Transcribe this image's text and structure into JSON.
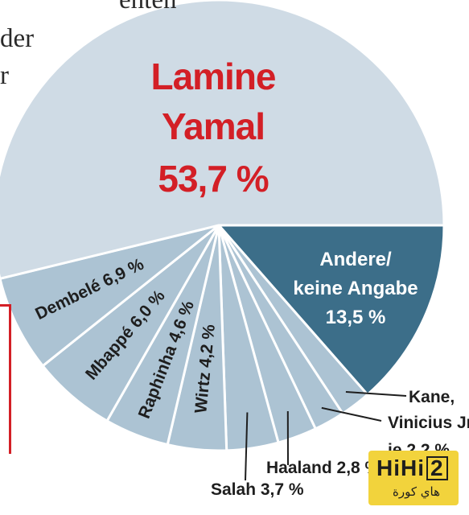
{
  "page_fragments": [
    "enten",
    "der",
    "r"
  ],
  "logo": {
    "text_main": "HiHi",
    "text_box": "2",
    "text_sub": "هاي كورة"
  },
  "chart_data": {
    "type": "pie",
    "title": "",
    "highlight_color": "#d31f26",
    "slices": [
      {
        "label": "Lamine Yamal",
        "display": [
          "Lamine",
          "Yamal",
          "53,7 %"
        ],
        "value": 53.7,
        "color": "#cfdbe5",
        "label_color": "#d31f26",
        "label_style": "inside-big"
      },
      {
        "label": "Andere/ keine Angabe",
        "display": [
          "Andere/",
          "keine Angabe",
          "13,5 %"
        ],
        "value": 13.5,
        "color": "#3c6e89",
        "label_color": "#ffffff",
        "label_style": "inside-center"
      },
      {
        "label": "Kane, Vinicius Jr. je 2,2 %",
        "display": [
          "Kane,"
        ],
        "value": 2.2,
        "color": "#acc3d3",
        "label_color": "#1e1e1e",
        "label_style": "leader"
      },
      {
        "label": "Kane, Vinicius Jr. je 2,2 %",
        "display": [
          "Vinicius Jr.",
          "je 2,2 %"
        ],
        "value": 2.2,
        "color": "#acc3d3",
        "label_color": "#1e1e1e",
        "label_style": "leader"
      },
      {
        "label": "Haaland 2,8 %",
        "display": [
          "Haaland 2,8 %"
        ],
        "value": 2.8,
        "color": "#acc3d3",
        "label_color": "#1e1e1e",
        "label_style": "leader"
      },
      {
        "label": "Salah 3,7 %",
        "display": [
          "Salah 3,7 %"
        ],
        "value": 3.7,
        "color": "#acc3d3",
        "label_color": "#1e1e1e",
        "label_style": "leader"
      },
      {
        "label": "Wirtz 4,2 %",
        "display": [
          "Wirtz 4,2 %"
        ],
        "value": 4.2,
        "color": "#acc3d3",
        "label_color": "#1e1e1e",
        "label_style": "radial"
      },
      {
        "label": "Raphinha 4,6 %",
        "display": [
          "Raphinha 4,6 %"
        ],
        "value": 4.6,
        "color": "#acc3d3",
        "label_color": "#1e1e1e",
        "label_style": "radial"
      },
      {
        "label": "Mbappé 6,0 %",
        "display": [
          "Mbappé 6,0 %"
        ],
        "value": 6.0,
        "color": "#acc3d3",
        "label_color": "#1e1e1e",
        "label_style": "radial"
      },
      {
        "label": "Dembelé 6,9 %",
        "display": [
          "Dembelé 6,9 %"
        ],
        "value": 6.9,
        "color": "#acc3d3",
        "label_color": "#1e1e1e",
        "label_style": "radial"
      }
    ]
  }
}
